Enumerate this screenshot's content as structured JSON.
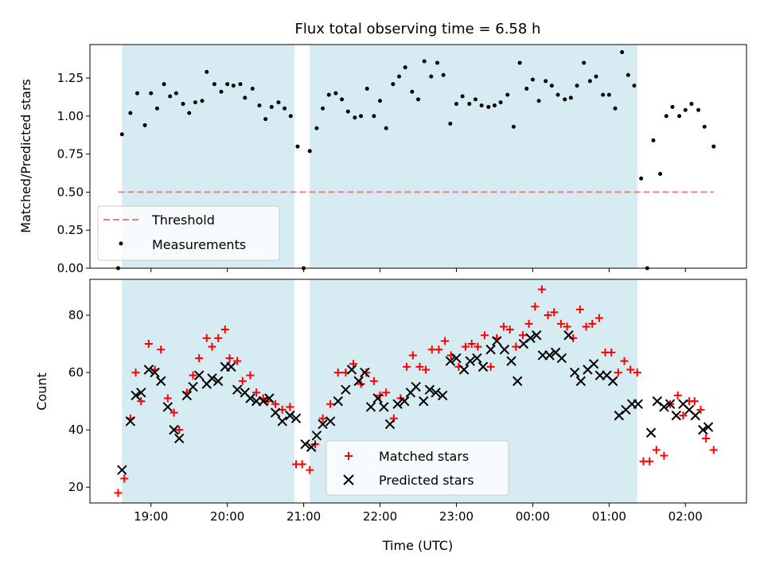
{
  "chart_data": [
    {
      "type": "scatter",
      "title": "Flux total observing time = 6.58 h",
      "xlabel": "",
      "ylabel": "Matched/Predicted stars",
      "x_unit": "hours (UTC, continuing past midnight as 24+)",
      "xlim": [
        18.2,
        26.8
      ],
      "ylim": [
        0,
        1.47
      ],
      "yticks": [
        0.0,
        0.25,
        0.5,
        0.75,
        1.0,
        1.25
      ],
      "ytick_labels": [
        "0.00",
        "0.25",
        "0.50",
        "0.75",
        "1.00",
        "1.25"
      ],
      "shaded_intervals": [
        [
          18.62,
          20.88
        ],
        [
          21.08,
          25.37
        ]
      ],
      "threshold": {
        "name": "Threshold",
        "value": 0.5,
        "x_range": [
          18.57,
          26.37
        ],
        "color": "#f08080"
      },
      "legend": {
        "position": "lower-left",
        "entries": [
          "Threshold",
          "Measurements"
        ]
      },
      "series": [
        {
          "name": "Measurements",
          "color": "#000000",
          "x": [
            18.57,
            18.62,
            18.73,
            18.82,
            18.92,
            19.0,
            19.08,
            19.17,
            19.25,
            19.33,
            19.42,
            19.5,
            19.58,
            19.67,
            19.73,
            19.83,
            19.92,
            20.0,
            20.08,
            20.17,
            20.23,
            20.33,
            20.42,
            20.5,
            20.58,
            20.67,
            20.75,
            20.83,
            20.92,
            21.0,
            21.08,
            21.17,
            21.25,
            21.33,
            21.42,
            21.5,
            21.58,
            21.67,
            21.75,
            21.83,
            21.92,
            22.0,
            22.08,
            22.17,
            22.25,
            22.33,
            22.42,
            22.5,
            22.58,
            22.67,
            22.75,
            22.83,
            22.92,
            23.0,
            23.08,
            23.17,
            23.25,
            23.33,
            23.42,
            23.5,
            23.58,
            23.67,
            23.75,
            23.83,
            23.92,
            24.0,
            24.08,
            24.17,
            24.25,
            24.33,
            24.42,
            24.5,
            24.58,
            24.67,
            24.75,
            24.83,
            24.92,
            25.0,
            25.08,
            25.17,
            25.25,
            25.33,
            25.42,
            25.5,
            25.58,
            25.67,
            25.75,
            25.83,
            25.92,
            26.0,
            26.08,
            26.17,
            26.25,
            26.37
          ],
          "y": [
            0.0,
            0.88,
            1.02,
            1.15,
            0.94,
            1.15,
            1.05,
            1.21,
            1.13,
            1.15,
            1.08,
            1.02,
            1.09,
            1.1,
            1.29,
            1.21,
            1.16,
            1.21,
            1.2,
            1.21,
            1.12,
            1.18,
            1.07,
            0.98,
            1.06,
            1.09,
            1.05,
            1.0,
            0.8,
            0.0,
            0.77,
            0.92,
            1.05,
            1.14,
            1.15,
            1.11,
            1.03,
            0.99,
            1.0,
            1.18,
            1.0,
            1.1,
            0.92,
            1.21,
            1.26,
            1.32,
            1.16,
            1.11,
            1.36,
            1.26,
            1.35,
            1.27,
            0.95,
            1.08,
            1.13,
            1.08,
            1.11,
            1.07,
            1.06,
            1.07,
            1.09,
            1.14,
            0.93,
            1.35,
            1.18,
            1.24,
            1.1,
            1.23,
            1.2,
            1.14,
            1.11,
            1.12,
            1.2,
            1.35,
            1.23,
            1.26,
            1.14,
            1.14,
            1.05,
            1.42,
            1.27,
            1.2,
            0.59,
            0.0,
            0.84,
            0.62,
            1.0,
            1.06,
            1.0,
            1.04,
            1.08,
            1.04,
            0.93,
            0.8
          ]
        }
      ]
    },
    {
      "type": "scatter",
      "title": "",
      "xlabel": "Time (UTC)",
      "ylabel": "Count",
      "x_unit": "hours (UTC, continuing past midnight as 24+)",
      "xlim": [
        18.2,
        26.8
      ],
      "ylim": [
        14.5,
        92.5
      ],
      "yticks": [
        20,
        40,
        60,
        80
      ],
      "ytick_labels": [
        "20",
        "40",
        "60",
        "80"
      ],
      "xticks": [
        19,
        20,
        21,
        22,
        23,
        24,
        25,
        26
      ],
      "xtick_labels": [
        "19:00",
        "20:00",
        "21:00",
        "22:00",
        "23:00",
        "00:00",
        "01:00",
        "02:00"
      ],
      "shaded_intervals": [
        [
          18.62,
          20.88
        ],
        [
          21.08,
          25.37
        ]
      ],
      "legend": {
        "position": "lower-center",
        "entries": [
          "Matched stars",
          "Predicted stars"
        ]
      },
      "series": [
        {
          "name": "Matched stars",
          "marker": "plus",
          "color": "#ff0000",
          "x": [
            18.57,
            18.65,
            18.73,
            18.8,
            18.87,
            18.97,
            19.05,
            19.13,
            19.22,
            19.3,
            19.37,
            19.47,
            19.55,
            19.63,
            19.73,
            19.8,
            19.88,
            19.97,
            20.03,
            20.13,
            20.2,
            20.3,
            20.38,
            20.47,
            20.53,
            20.63,
            20.72,
            20.82,
            20.9,
            20.98,
            21.08,
            21.15,
            21.25,
            21.35,
            21.45,
            21.55,
            21.65,
            21.75,
            21.82,
            21.92,
            22.0,
            22.08,
            22.18,
            22.27,
            22.35,
            22.43,
            22.52,
            22.6,
            22.68,
            22.77,
            22.85,
            22.93,
            23.03,
            23.12,
            23.2,
            23.28,
            23.37,
            23.45,
            23.53,
            23.62,
            23.7,
            23.78,
            23.87,
            23.95,
            24.03,
            24.12,
            24.2,
            24.28,
            24.37,
            24.45,
            24.53,
            24.62,
            24.7,
            24.78,
            24.87,
            24.95,
            25.03,
            25.12,
            25.2,
            25.28,
            25.37,
            25.45,
            25.53,
            25.62,
            25.72,
            25.8,
            25.9,
            25.97,
            26.05,
            26.12,
            26.2,
            26.27,
            26.37
          ],
          "y": [
            18,
            23,
            44,
            60,
            50,
            70,
            61,
            68,
            51,
            46,
            40,
            53,
            59,
            65,
            72,
            69,
            72,
            75,
            65,
            64,
            57,
            59,
            53,
            51,
            50,
            49,
            47,
            48,
            28,
            28,
            26,
            35,
            44,
            49,
            60,
            60,
            63,
            56,
            60,
            57,
            52,
            53,
            44,
            51,
            62,
            66,
            62,
            61,
            68,
            68,
            71,
            66,
            62,
            69,
            70,
            69,
            73,
            62,
            72,
            76,
            75,
            69,
            73,
            77,
            83,
            89,
            80,
            81,
            77,
            76,
            72,
            82,
            76,
            77,
            79,
            67,
            67,
            60,
            64,
            61,
            60,
            29,
            29,
            33,
            31,
            49,
            52,
            45,
            50,
            50,
            47,
            37,
            33
          ]
        },
        {
          "name": "Predicted stars",
          "marker": "x",
          "color": "#000000",
          "x": [
            18.62,
            18.73,
            18.8,
            18.87,
            18.97,
            19.05,
            19.13,
            19.22,
            19.3,
            19.37,
            19.47,
            19.55,
            19.63,
            19.73,
            19.8,
            19.88,
            19.97,
            20.05,
            20.13,
            20.23,
            20.3,
            20.38,
            20.47,
            20.55,
            20.63,
            20.72,
            20.82,
            20.9,
            21.02,
            21.1,
            21.17,
            21.25,
            21.35,
            21.45,
            21.55,
            21.63,
            21.72,
            21.8,
            21.88,
            21.97,
            22.05,
            22.13,
            22.23,
            22.32,
            22.4,
            22.47,
            22.57,
            22.65,
            22.73,
            22.82,
            22.92,
            23.0,
            23.1,
            23.18,
            23.27,
            23.35,
            23.45,
            23.53,
            23.63,
            23.72,
            23.8,
            23.88,
            23.97,
            24.05,
            24.13,
            24.22,
            24.3,
            24.38,
            24.47,
            24.55,
            24.63,
            24.72,
            24.8,
            24.88,
            24.97,
            25.05,
            25.13,
            25.22,
            25.3,
            25.38,
            25.55,
            25.63,
            25.72,
            25.8,
            25.88,
            25.97,
            26.05,
            26.13,
            26.23,
            26.3
          ],
          "y": [
            26,
            43,
            52,
            53,
            61,
            60,
            57,
            48,
            40,
            37,
            52,
            55,
            59,
            56,
            58,
            57,
            62,
            62,
            54,
            53,
            51,
            50,
            50,
            51,
            46,
            43,
            45,
            44,
            35,
            34,
            38,
            42,
            43,
            50,
            54,
            61,
            57,
            60,
            48,
            51,
            48,
            42,
            49,
            50,
            53,
            55,
            50,
            54,
            53,
            52,
            64,
            65,
            61,
            64,
            65,
            62,
            68,
            71,
            68,
            64,
            57,
            70,
            72,
            73,
            66,
            66,
            67,
            65,
            73,
            60,
            57,
            61,
            63,
            59,
            59,
            57,
            45,
            47,
            49,
            49,
            39,
            50,
            48,
            49,
            45,
            49,
            47,
            45,
            40,
            41
          ]
        }
      ]
    }
  ]
}
